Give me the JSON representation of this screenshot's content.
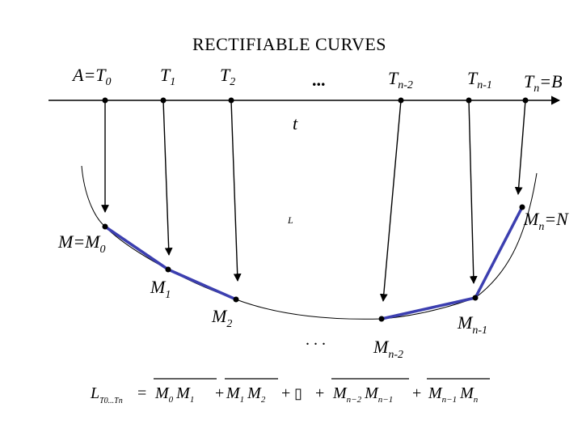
{
  "title": "RECTIFIABLE CURVES",
  "axis_label": "t",
  "curve_label": "L",
  "top_labels": [
    {
      "base": "A=T",
      "sub": "0"
    },
    {
      "base": "T",
      "sub": "1"
    },
    {
      "base": "T",
      "sub": "2"
    },
    {
      "base": "...",
      "sub": ""
    },
    {
      "base": "T",
      "sub": "n-2"
    },
    {
      "base": "T",
      "sub": "n-1"
    },
    {
      "base": "T",
      "sub": "n",
      "tail": "=B"
    }
  ],
  "curve_labels": [
    {
      "base": "M=M",
      "sub": "0"
    },
    {
      "base": "M",
      "sub": "1"
    },
    {
      "base": "M",
      "sub": "2"
    },
    {
      "base": ". . .",
      "sub": ""
    },
    {
      "base": "M",
      "sub": "n-2"
    },
    {
      "base": "M",
      "sub": "n-1"
    },
    {
      "base": "M",
      "sub": "n",
      "tail": "=N"
    }
  ],
  "formula": {
    "lhs": "L",
    "lhs_sub": "T0...Tn",
    "equals": "=",
    "terms": [
      {
        "a": "M",
        "a_sub": "0",
        "b": "M",
        "b_sub": "1"
      },
      {
        "a": "M",
        "a_sub": "1",
        "b": "M",
        "b_sub": "2"
      },
      {
        "a": "M",
        "a_sub": "n−2",
        "b": "M",
        "b_sub": "n−1"
      },
      {
        "a": "M",
        "a_sub": "n−1",
        "b": "M",
        "b_sub": "n"
      }
    ],
    "plus": "+",
    "ellipsis_glyph": "▯"
  },
  "colors": {
    "polyline": "#3c3fb0",
    "ink": "#000000"
  }
}
